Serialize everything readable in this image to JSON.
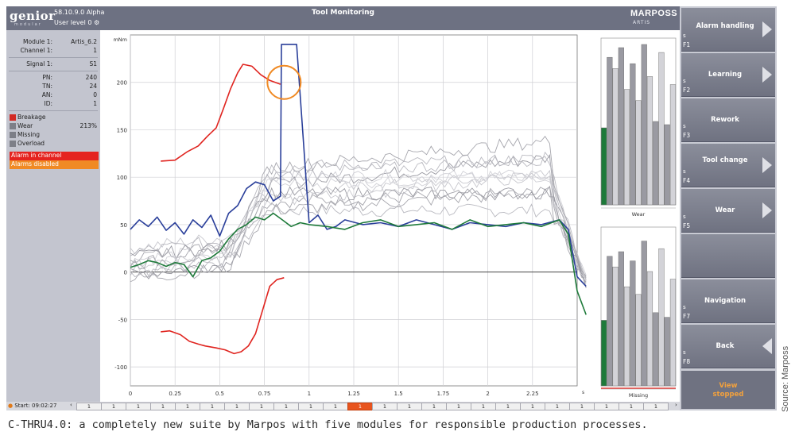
{
  "header": {
    "logo": "genior",
    "logo_sub": "modular",
    "version": "58.10.9.0 Alpha",
    "user_level": "User level 0",
    "title": "Tool Monitoring",
    "brand": "MARPOSS",
    "brand_sub": "ARTIS"
  },
  "info": {
    "module": {
      "label": "Module 1:",
      "value": "Artis_6.2"
    },
    "channel": {
      "label": "Channel 1:",
      "value": "1"
    },
    "signal": {
      "label": "Signal 1:",
      "value": "S1"
    },
    "pn": {
      "label": "PN:",
      "value": "240"
    },
    "tn": {
      "label": "TN:",
      "value": "24"
    },
    "an": {
      "label": "AN:",
      "value": "0"
    },
    "id": {
      "label": "ID:",
      "value": "1"
    }
  },
  "status": {
    "breakage": "Breakage",
    "wear": "Wear",
    "wear_value": "213%",
    "missing": "Missing",
    "overload": "Overload",
    "alarm_in_channel": "Alarm in channel",
    "alarms_disabled": "Alarms disabled"
  },
  "colors": {
    "red": "#e0241f",
    "orange": "#f08a24",
    "blue": "#2a3f9a",
    "green": "#1e7a3a",
    "gray": "#9a9aa0"
  },
  "chart_data": {
    "type": "line",
    "ylabel": "mNm",
    "xlim": [
      0,
      2.5
    ],
    "ylim": [
      -120,
      250
    ],
    "x_ticks": [
      "0",
      "0.25",
      "0.5",
      "0.75",
      "1",
      "1.25",
      "1.5",
      "1.75",
      "2",
      "2.25"
    ],
    "y_ticks": [
      "200",
      "150",
      "100",
      "50",
      "0",
      "-50",
      "-100"
    ],
    "series": [
      {
        "role": "upper-limit",
        "color": "#e0241f",
        "x": [
          0.17,
          0.25,
          0.32,
          0.38,
          0.43,
          0.48,
          0.52,
          0.56,
          0.6,
          0.63,
          0.68,
          0.73,
          0.78,
          0.84
        ],
        "y": [
          117,
          118,
          127,
          133,
          143,
          152,
          172,
          193,
          210,
          219,
          217,
          208,
          202,
          198
        ]
      },
      {
        "role": "lower-limit",
        "color": "#e0241f",
        "x": [
          0.17,
          0.22,
          0.28,
          0.33,
          0.38,
          0.42,
          0.48,
          0.53,
          0.58,
          0.62,
          0.66,
          0.7,
          0.74,
          0.78,
          0.82,
          0.86
        ],
        "y": [
          -63,
          -62,
          -66,
          -73,
          -76,
          -78,
          -80,
          -82,
          -86,
          -84,
          -78,
          -65,
          -40,
          -15,
          -8,
          -6
        ]
      },
      {
        "role": "highlighted-curve",
        "color": "#2a3f9a",
        "x": [
          0,
          0.05,
          0.1,
          0.15,
          0.2,
          0.25,
          0.3,
          0.35,
          0.4,
          0.45,
          0.5,
          0.55,
          0.6,
          0.65,
          0.7,
          0.75,
          0.8,
          0.84,
          0.845,
          0.86,
          0.88,
          0.9,
          0.93,
          0.96,
          1.0,
          1.05,
          1.1,
          1.15,
          1.2,
          1.3,
          1.4,
          1.5,
          1.6,
          1.7,
          1.8,
          1.9,
          2.0,
          2.1,
          2.2,
          2.3,
          2.4,
          2.45,
          2.5,
          2.55
        ],
        "y": [
          45,
          55,
          48,
          58,
          44,
          52,
          40,
          55,
          47,
          60,
          38,
          62,
          70,
          88,
          95,
          92,
          75,
          80,
          240,
          240,
          240,
          240,
          240,
          160,
          52,
          60,
          45,
          48,
          55,
          50,
          52,
          48,
          55,
          50,
          45,
          52,
          50,
          48,
          52,
          50,
          55,
          45,
          -5,
          -15
        ]
      },
      {
        "role": "reference-curve",
        "color": "#1e7a3a",
        "x": [
          0,
          0.05,
          0.1,
          0.15,
          0.2,
          0.25,
          0.3,
          0.35,
          0.4,
          0.45,
          0.5,
          0.55,
          0.6,
          0.65,
          0.7,
          0.75,
          0.8,
          0.85,
          0.9,
          0.95,
          1.0,
          1.1,
          1.2,
          1.3,
          1.4,
          1.5,
          1.6,
          1.7,
          1.8,
          1.9,
          2.0,
          2.1,
          2.2,
          2.3,
          2.4,
          2.45,
          2.5,
          2.55
        ],
        "y": [
          5,
          8,
          12,
          10,
          6,
          10,
          8,
          -5,
          12,
          15,
          22,
          35,
          45,
          50,
          58,
          55,
          62,
          55,
          48,
          52,
          50,
          48,
          45,
          52,
          55,
          48,
          50,
          52,
          45,
          55,
          48,
          50,
          52,
          48,
          55,
          40,
          -20,
          -45
        ]
      }
    ],
    "background_curves": 12
  },
  "bars_top": {
    "caption": "Wear",
    "values": [
      0.48,
      0.92,
      0.85,
      0.98,
      0.72,
      0.88,
      0.65,
      1.0,
      0.8,
      0.52,
      0.95,
      0.5,
      0.75
    ],
    "highlight_index": 0
  },
  "bars_bottom": {
    "caption": "Missing",
    "values": [
      0.43,
      0.85,
      0.78,
      0.88,
      0.65,
      0.82,
      0.6,
      0.95,
      0.75,
      0.48,
      0.9,
      0.45,
      0.7
    ],
    "highlight_index": 0
  },
  "fkeys": {
    "f1": {
      "label": "Alarm handling",
      "s": "s",
      "fn": "F1"
    },
    "f2": {
      "label": "Learning",
      "s": "s",
      "fn": "F2"
    },
    "f3": {
      "label": "Rework",
      "s": "s",
      "fn": "F3"
    },
    "f4": {
      "label": "Tool change",
      "s": "s",
      "fn": "F4"
    },
    "f5": {
      "label": "Wear",
      "s": "s",
      "fn": "F5"
    },
    "f7": {
      "label": "Navigation",
      "s": "s",
      "fn": "F7"
    },
    "f8": {
      "label": "Back",
      "s": "s",
      "fn": "F8"
    },
    "view_stopped": "View stopped"
  },
  "statusbar": {
    "start": "Start: 09:02:27",
    "pages": [
      "1",
      "1",
      "1",
      "1",
      "1",
      "1",
      "1",
      "1",
      "1",
      "1",
      "1",
      "1",
      "1",
      "1",
      "1",
      "1",
      "1",
      "1",
      "1",
      "1",
      "1",
      "1",
      "1",
      "1"
    ],
    "active_page_index": 11
  },
  "caption": "C-THRU4.0: a completely new suite by Marpos with five modules for responsible production processes.",
  "source": "Source: Marposs"
}
